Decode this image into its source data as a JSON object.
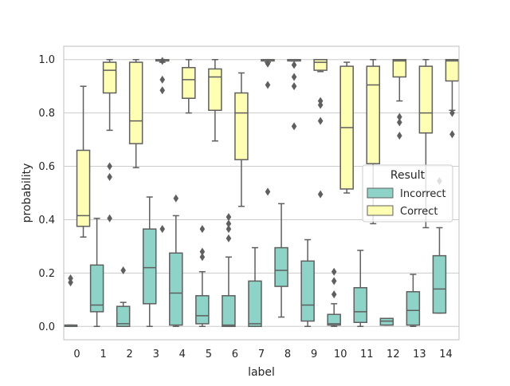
{
  "chart_data": {
    "type": "box",
    "xlabel": "label",
    "ylabel": "probability",
    "ylim": [
      -0.05,
      1.05
    ],
    "yticks": [
      "0.0",
      "0.2",
      "0.4",
      "0.6",
      "0.8",
      "1.0"
    ],
    "categories": [
      "0",
      "1",
      "2",
      "3",
      "4",
      "5",
      "6",
      "7",
      "8",
      "9",
      "10",
      "11",
      "12",
      "13",
      "14"
    ],
    "grid": true,
    "legend": {
      "title": "Result",
      "placement": "right",
      "entries": [
        "Incorrect",
        "Correct"
      ]
    },
    "colors": {
      "Incorrect": "#8dd3c7",
      "Correct": "#ffffb3",
      "line": "#5f5f5f",
      "grid": "#cccccc"
    },
    "series": [
      {
        "name": "Incorrect",
        "boxes": [
          {
            "q1": 0.0,
            "median": 0.0,
            "q3": 0.005,
            "whisker_low": 0.0,
            "whisker_high": 0.005,
            "outliers": [
              0.165,
              0.18
            ]
          },
          {
            "q1": 0.055,
            "median": 0.08,
            "q3": 0.23,
            "whisker_low": 0.0,
            "whisker_high": 0.405,
            "outliers": []
          },
          {
            "q1": 0.0,
            "median": 0.01,
            "q3": 0.075,
            "whisker_low": 0.0,
            "whisker_high": 0.09,
            "outliers": [
              0.21
            ]
          },
          {
            "q1": 0.085,
            "median": 0.22,
            "q3": 0.365,
            "whisker_low": 0.0,
            "whisker_high": 0.485,
            "outliers": []
          },
          {
            "q1": 0.005,
            "median": 0.125,
            "q3": 0.275,
            "whisker_low": 0.0,
            "whisker_high": 0.415,
            "outliers": [
              0.48
            ]
          },
          {
            "q1": 0.01,
            "median": 0.04,
            "q3": 0.115,
            "whisker_low": 0.0,
            "whisker_high": 0.205,
            "outliers": [
              0.26,
              0.28,
              0.365
            ]
          },
          {
            "q1": 0.0,
            "median": 0.005,
            "q3": 0.115,
            "whisker_low": 0.0,
            "whisker_high": 0.26,
            "outliers": [
              0.33,
              0.365,
              0.385,
              0.41
            ]
          },
          {
            "q1": 0.0,
            "median": 0.01,
            "q3": 0.17,
            "whisker_low": 0.0,
            "whisker_high": 0.295,
            "outliers": []
          },
          {
            "q1": 0.15,
            "median": 0.21,
            "q3": 0.295,
            "whisker_low": 0.035,
            "whisker_high": 0.46,
            "outliers": []
          },
          {
            "q1": 0.02,
            "median": 0.08,
            "q3": 0.245,
            "whisker_low": 0.0,
            "whisker_high": 0.325,
            "outliers": []
          },
          {
            "q1": 0.005,
            "median": 0.01,
            "q3": 0.045,
            "whisker_low": 0.0,
            "whisker_high": 0.085,
            "outliers": [
              0.12,
              0.17,
              0.205
            ]
          },
          {
            "q1": 0.015,
            "median": 0.055,
            "q3": 0.145,
            "whisker_low": 0.0,
            "whisker_high": 0.285,
            "outliers": []
          },
          {
            "q1": 0.005,
            "median": 0.02,
            "q3": 0.03,
            "whisker_low": 0.005,
            "whisker_high": 0.03,
            "outliers": []
          },
          {
            "q1": 0.005,
            "median": 0.06,
            "q3": 0.13,
            "whisker_low": 0.0,
            "whisker_high": 0.195,
            "outliers": []
          },
          {
            "q1": 0.05,
            "median": 0.14,
            "q3": 0.265,
            "whisker_low": 0.05,
            "whisker_high": 0.37,
            "outliers": [
              0.545
            ]
          }
        ]
      },
      {
        "name": "Correct",
        "boxes": [
          {
            "q1": 0.375,
            "median": 0.415,
            "q3": 0.66,
            "whisker_low": 0.335,
            "whisker_high": 0.9,
            "outliers": []
          },
          {
            "q1": 0.875,
            "median": 0.96,
            "q3": 0.99,
            "whisker_low": 0.735,
            "whisker_high": 1.0,
            "outliers": [
              0.405,
              0.56,
              0.6
            ]
          },
          {
            "q1": 0.685,
            "median": 0.77,
            "q3": 0.99,
            "whisker_low": 0.595,
            "whisker_high": 1.0,
            "outliers": []
          },
          {
            "q1": 0.995,
            "median": 1.0,
            "q3": 1.0,
            "whisker_low": 0.99,
            "whisker_high": 1.0,
            "outliers": [
              0.365,
              0.885,
              0.925,
              0.995
            ]
          },
          {
            "q1": 0.855,
            "median": 0.925,
            "q3": 0.97,
            "whisker_low": 0.8,
            "whisker_high": 1.0,
            "outliers": []
          },
          {
            "q1": 0.81,
            "median": 0.935,
            "q3": 0.965,
            "whisker_low": 0.695,
            "whisker_high": 1.0,
            "outliers": []
          },
          {
            "q1": 0.625,
            "median": 0.8,
            "q3": 0.875,
            "whisker_low": 0.45,
            "whisker_high": 0.95,
            "outliers": []
          },
          {
            "q1": 0.995,
            "median": 1.0,
            "q3": 1.0,
            "whisker_low": 0.99,
            "whisker_high": 1.0,
            "outliers": [
              0.505,
              0.905,
              0.985
            ]
          },
          {
            "q1": 0.995,
            "median": 1.0,
            "q3": 1.0,
            "whisker_low": 0.995,
            "whisker_high": 1.0,
            "outliers": [
              0.75,
              0.9,
              0.935,
              0.98
            ]
          },
          {
            "q1": 0.96,
            "median": 0.99,
            "q3": 1.0,
            "whisker_low": 0.955,
            "whisker_high": 1.0,
            "outliers": [
              0.495,
              0.77,
              0.83,
              0.845
            ]
          },
          {
            "q1": 0.515,
            "median": 0.745,
            "q3": 0.975,
            "whisker_low": 0.5,
            "whisker_high": 0.99,
            "outliers": []
          },
          {
            "q1": 0.61,
            "median": 0.905,
            "q3": 0.975,
            "whisker_low": 0.385,
            "whisker_high": 1.0,
            "outliers": []
          },
          {
            "q1": 0.935,
            "median": 0.995,
            "q3": 1.0,
            "whisker_low": 0.845,
            "whisker_high": 1.0,
            "outliers": [
              0.715,
              0.765,
              0.785
            ]
          },
          {
            "q1": 0.725,
            "median": 0.8,
            "q3": 0.975,
            "whisker_low": 0.37,
            "whisker_high": 1.0,
            "outliers": []
          },
          {
            "q1": 0.92,
            "median": 0.995,
            "q3": 1.0,
            "whisker_low": 0.81,
            "whisker_high": 1.0,
            "outliers": [
              0.72,
              0.8
            ]
          }
        ]
      }
    ]
  }
}
